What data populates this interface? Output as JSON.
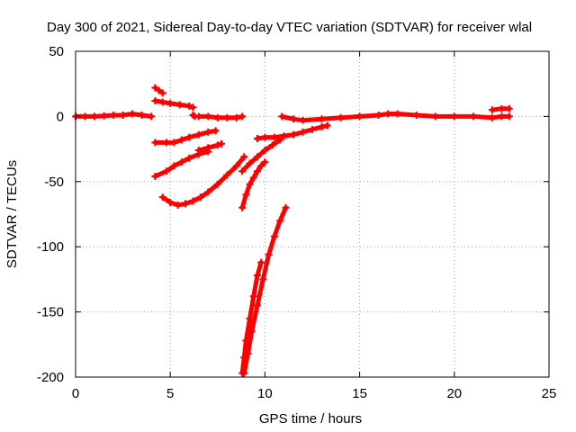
{
  "chart_data": {
    "type": "scatter",
    "title": "Day 300 of 2021, Sidereal Day-to-day VTEC variation (SDTVAR) for receiver wlal",
    "xlabel": "GPS time / hours",
    "ylabel": "SDTVAR / TECUs",
    "xlim": [
      0,
      25
    ],
    "ylim": [
      -200,
      50
    ],
    "xticks": [
      0,
      5,
      10,
      15,
      20,
      25
    ],
    "yticks": [
      -200,
      -150,
      -100,
      -50,
      0,
      50
    ],
    "grid": true,
    "legend": "none",
    "series_color": "#ff0000",
    "series": [
      {
        "points": [
          [
            0.0,
            0
          ],
          [
            0.5,
            0
          ],
          [
            1.0,
            0
          ],
          [
            1.5,
            0.5
          ],
          [
            2.0,
            1
          ],
          [
            2.5,
            1
          ],
          [
            3.0,
            2
          ],
          [
            3.5,
            1
          ],
          [
            4.0,
            0
          ]
        ]
      },
      {
        "points": [
          [
            4.2,
            22
          ],
          [
            4.4,
            20
          ],
          [
            4.6,
            18
          ]
        ]
      },
      {
        "points": [
          [
            4.2,
            12
          ],
          [
            4.6,
            11
          ],
          [
            5.0,
            10
          ],
          [
            5.5,
            9
          ],
          [
            6.0,
            8
          ],
          [
            6.2,
            7
          ]
        ]
      },
      {
        "points": [
          [
            6.2,
            1
          ],
          [
            6.3,
            0
          ]
        ]
      },
      {
        "points": [
          [
            6.5,
            0
          ],
          [
            7.0,
            0
          ],
          [
            7.5,
            -1
          ],
          [
            8.0,
            -1
          ],
          [
            8.5,
            -1
          ],
          [
            8.8,
            0
          ]
        ]
      },
      {
        "points": [
          [
            4.2,
            -20
          ],
          [
            4.8,
            -20
          ],
          [
            5.2,
            -20
          ],
          [
            5.6,
            -18
          ],
          [
            6.0,
            -16
          ],
          [
            6.5,
            -14
          ],
          [
            7.0,
            -12
          ],
          [
            7.4,
            -11
          ]
        ]
      },
      {
        "points": [
          [
            6.5,
            -26
          ],
          [
            7.0,
            -24
          ],
          [
            7.5,
            -22
          ],
          [
            7.7,
            -21
          ]
        ]
      },
      {
        "points": [
          [
            4.2,
            -46
          ],
          [
            4.8,
            -42
          ],
          [
            5.2,
            -38
          ],
          [
            5.6,
            -35
          ],
          [
            6.0,
            -32
          ],
          [
            6.5,
            -29
          ],
          [
            7.0,
            -27
          ]
        ]
      },
      {
        "points": [
          [
            4.6,
            -62
          ],
          [
            5.0,
            -66
          ],
          [
            5.4,
            -68
          ],
          [
            5.8,
            -67
          ],
          [
            6.2,
            -65
          ],
          [
            6.6,
            -62
          ],
          [
            7.0,
            -58
          ],
          [
            7.5,
            -52
          ],
          [
            8.0,
            -45
          ],
          [
            8.5,
            -38
          ],
          [
            8.9,
            -31
          ]
        ]
      },
      {
        "points": [
          [
            8.8,
            -42
          ],
          [
            9.2,
            -36
          ],
          [
            9.6,
            -31
          ],
          [
            10.0,
            -26
          ],
          [
            10.4,
            -22
          ],
          [
            10.8,
            -18
          ]
        ]
      },
      {
        "points": [
          [
            8.8,
            -70
          ],
          [
            9.0,
            -60
          ],
          [
            9.2,
            -52
          ],
          [
            9.4,
            -47
          ],
          [
            9.6,
            -42
          ],
          [
            9.8,
            -38
          ],
          [
            10.0,
            -35
          ]
        ]
      },
      {
        "points": [
          [
            8.8,
            -197
          ],
          [
            8.9,
            -185
          ],
          [
            9.0,
            -172
          ],
          [
            9.2,
            -155
          ],
          [
            9.4,
            -138
          ],
          [
            9.6,
            -122
          ],
          [
            9.8,
            -112
          ]
        ]
      },
      {
        "points": [
          [
            8.9,
            -197
          ],
          [
            9.1,
            -182
          ],
          [
            9.3,
            -165
          ],
          [
            9.6,
            -145
          ],
          [
            9.9,
            -125
          ],
          [
            10.2,
            -106
          ],
          [
            10.5,
            -92
          ],
          [
            10.8,
            -80
          ],
          [
            11.1,
            -70
          ]
        ]
      },
      {
        "points": [
          [
            9.6,
            -17
          ],
          [
            10.0,
            -16
          ],
          [
            10.5,
            -16
          ],
          [
            11.0,
            -15
          ],
          [
            11.5,
            -14
          ],
          [
            12.0,
            -12
          ],
          [
            12.5,
            -10
          ],
          [
            13.0,
            -8
          ],
          [
            13.3,
            -7
          ]
        ]
      },
      {
        "points": [
          [
            10.9,
            0
          ],
          [
            11.5,
            -2
          ],
          [
            12.0,
            -3
          ],
          [
            13.0,
            -2
          ],
          [
            14.0,
            -1
          ],
          [
            15.0,
            0
          ],
          [
            16.0,
            1
          ],
          [
            16.5,
            2
          ],
          [
            17.0,
            2
          ],
          [
            18.0,
            1
          ],
          [
            19.0,
            0
          ],
          [
            20.0,
            0
          ],
          [
            21.0,
            0
          ],
          [
            22.0,
            -1
          ],
          [
            22.5,
            0
          ],
          [
            22.9,
            0
          ]
        ]
      },
      {
        "points": [
          [
            22.0,
            5
          ],
          [
            22.5,
            6
          ],
          [
            22.9,
            6
          ]
        ]
      }
    ]
  }
}
